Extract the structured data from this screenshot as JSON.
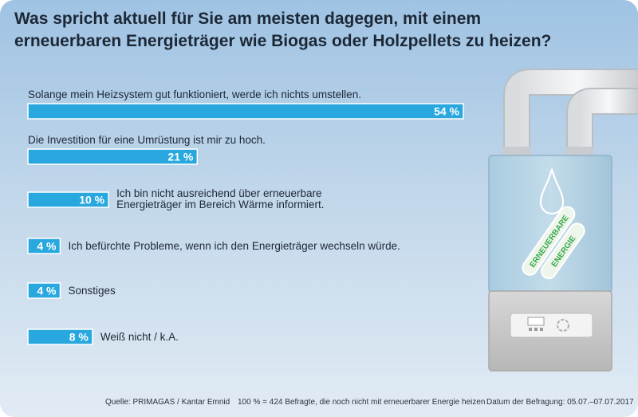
{
  "title_lines": [
    "Was spricht aktuell für Sie am meisten dagegen, mit einem",
    "erneuerbaren Energieträger wie Biogas oder Holzpellets zu heizen?"
  ],
  "colors": {
    "bar": "#29a8e0",
    "bar_stroke": "#ffffff",
    "text": "#1d2836"
  },
  "chart_data": {
    "type": "bar",
    "orientation": "horizontal",
    "unit": "%",
    "categories": [
      [
        "Solange mein Heizsystem gut funktioniert, werde ich nichts umstellen."
      ],
      [
        "Die Investition für eine Umrüstung ist mir zu hoch."
      ],
      [
        "Ich bin nicht ausreichend über erneuerbare",
        "Energieträger im Bereich Wärme informiert."
      ],
      [
        "Ich befürchte Probleme, wenn ich den Energieträger wechseln würde."
      ],
      [
        "Sonstiges"
      ],
      [
        "Weiß nicht / k.A."
      ]
    ],
    "values": [
      54,
      21,
      10,
      4,
      4,
      8
    ],
    "value_labels": [
      "54 %",
      "21 %",
      "10 %",
      "4 %",
      "4 %",
      "8 %"
    ]
  },
  "illustration": {
    "label_lines": [
      "ERNEUERBARE",
      "ENERGIE"
    ],
    "icon": "water-drop-icon"
  },
  "footer": {
    "source": "Quelle: PRIMAGAS / Kantar Emnid",
    "base": "100 % = 424 Befragte, die noch nicht mit erneuerbarer Energie heizen",
    "date": "Datum der Befragung: 05.07.–07.07.2017"
  }
}
